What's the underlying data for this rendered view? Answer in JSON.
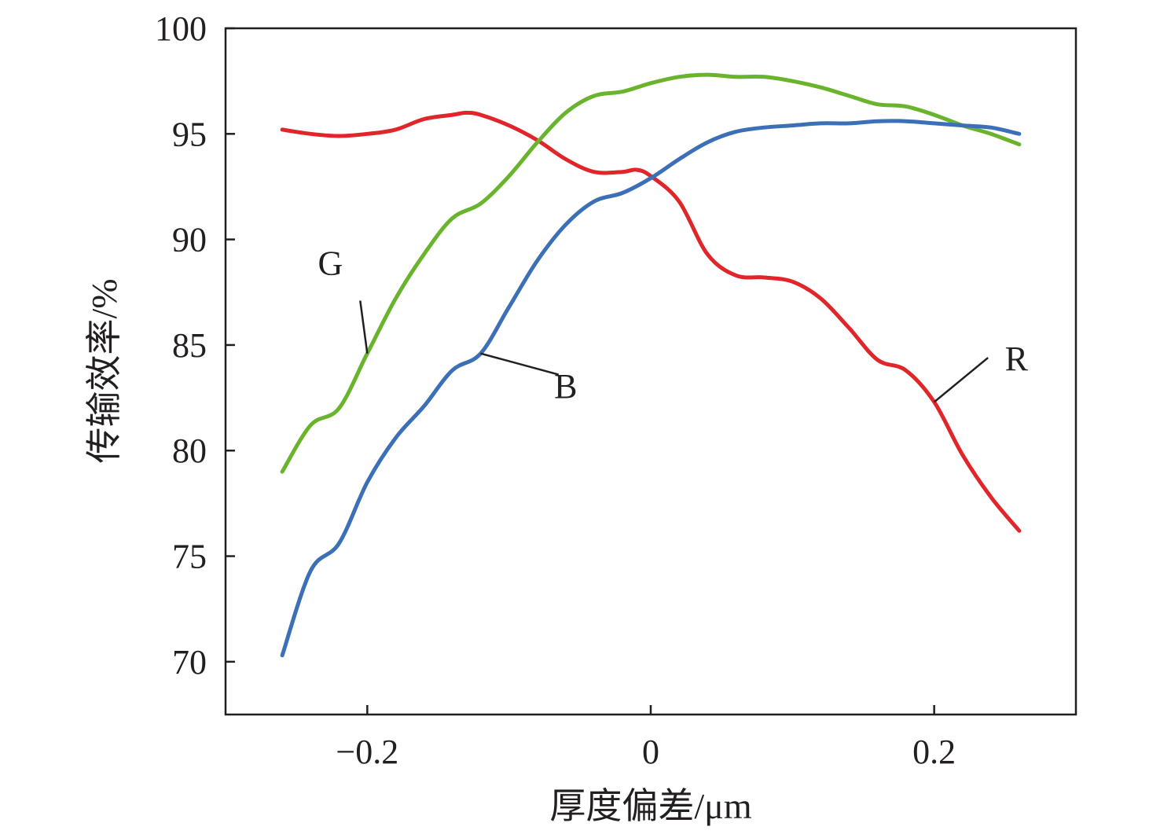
{
  "chart_data": {
    "type": "line",
    "xlabel": "厚度偏差/μm",
    "ylabel": "传输效率/%",
    "xlim": [
      -0.3,
      0.3
    ],
    "ylim": [
      67.5,
      100
    ],
    "xticks": [
      -0.2,
      0,
      0.2
    ],
    "xtick_labels": [
      "−0.2",
      "0",
      "0.2"
    ],
    "yticks": [
      70,
      75,
      80,
      85,
      90,
      95,
      100
    ],
    "ytick_labels": [
      "70",
      "75",
      "80",
      "85",
      "90",
      "95",
      "100"
    ],
    "grid": false,
    "legend": "none",
    "series": [
      {
        "name": "R",
        "color": "#e0262b",
        "x": [
          -0.26,
          -0.24,
          -0.22,
          -0.2,
          -0.18,
          -0.16,
          -0.14,
          -0.13,
          -0.12,
          -0.1,
          -0.08,
          -0.06,
          -0.04,
          -0.02,
          -0.01,
          0,
          0.02,
          0.04,
          0.06,
          0.08,
          0.1,
          0.12,
          0.14,
          0.16,
          0.18,
          0.2,
          0.22,
          0.24,
          0.26
        ],
        "y": [
          95.2,
          95.0,
          94.9,
          95.0,
          95.2,
          95.7,
          95.9,
          96.0,
          95.9,
          95.4,
          94.7,
          93.8,
          93.2,
          93.2,
          93.3,
          93.0,
          91.8,
          89.3,
          88.3,
          88.2,
          88.0,
          87.2,
          85.8,
          84.3,
          83.8,
          82.3,
          79.8,
          77.8,
          76.2
        ]
      },
      {
        "name": "G",
        "color": "#6ab42d",
        "x": [
          -0.26,
          -0.24,
          -0.22,
          -0.2,
          -0.18,
          -0.16,
          -0.14,
          -0.12,
          -0.1,
          -0.08,
          -0.06,
          -0.04,
          -0.02,
          0,
          0.02,
          0.04,
          0.06,
          0.08,
          0.1,
          0.12,
          0.14,
          0.16,
          0.18,
          0.2,
          0.22,
          0.24,
          0.26
        ],
        "y": [
          79.0,
          81.2,
          82.0,
          84.6,
          87.2,
          89.3,
          91.0,
          91.7,
          93.0,
          94.6,
          96.0,
          96.8,
          97.0,
          97.4,
          97.7,
          97.8,
          97.7,
          97.7,
          97.5,
          97.2,
          96.8,
          96.4,
          96.3,
          95.9,
          95.4,
          95.0,
          94.5
        ]
      },
      {
        "name": "B",
        "color": "#3b6fb6",
        "x": [
          -0.26,
          -0.24,
          -0.22,
          -0.2,
          -0.18,
          -0.16,
          -0.14,
          -0.12,
          -0.1,
          -0.08,
          -0.06,
          -0.04,
          -0.02,
          0,
          0.02,
          0.04,
          0.06,
          0.08,
          0.1,
          0.12,
          0.14,
          0.16,
          0.18,
          0.2,
          0.22,
          0.24,
          0.26
        ],
        "y": [
          70.3,
          74.3,
          75.6,
          78.5,
          80.6,
          82.1,
          83.8,
          84.6,
          86.8,
          89.0,
          90.7,
          91.8,
          92.2,
          92.9,
          93.8,
          94.6,
          95.1,
          95.3,
          95.4,
          95.5,
          95.5,
          95.6,
          95.6,
          95.5,
          95.4,
          95.3,
          95.0
        ]
      }
    ],
    "annotations": [
      {
        "text": "G",
        "series": "G",
        "at_x": -0.2
      },
      {
        "text": "B",
        "series": "B",
        "at_x": -0.11
      },
      {
        "text": "R",
        "series": "R",
        "at_x": 0.2
      }
    ]
  }
}
